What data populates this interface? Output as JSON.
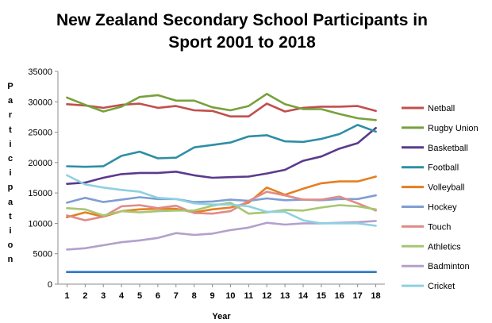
{
  "chart_data": {
    "type": "line",
    "title": "New Zealand Secondary School Participants in Sport 2001 to 2018",
    "title_lines": [
      "New Zealand Secondary School Participants in",
      "Sport 2001 to 2018"
    ],
    "xlabel": "Year",
    "ylabel": "Participation",
    "x": [
      1,
      2,
      3,
      4,
      5,
      6,
      7,
      8,
      9,
      10,
      11,
      12,
      13,
      14,
      15,
      16,
      17,
      18
    ],
    "ylim": [
      0,
      35000
    ],
    "yticks": [
      0,
      5000,
      10000,
      15000,
      20000,
      25000,
      30000,
      35000
    ],
    "legend_position": "right",
    "grid": false,
    "series": [
      {
        "name": "Netball",
        "color": "#c0504d",
        "values": [
          29600,
          29400,
          29000,
          29500,
          29700,
          29000,
          29300,
          28600,
          28500,
          27600,
          27600,
          29700,
          28400,
          29000,
          29200,
          29200,
          29300,
          28500
        ]
      },
      {
        "name": "Rugby Union",
        "color": "#77a13c",
        "values": [
          30700,
          29500,
          28400,
          29200,
          30800,
          31100,
          30200,
          30200,
          29100,
          28600,
          29300,
          31300,
          29600,
          28800,
          28800,
          28000,
          27300,
          27000
        ]
      },
      {
        "name": "Basketball",
        "color": "#5b3a8c",
        "values": [
          16500,
          16700,
          17500,
          18100,
          18300,
          18300,
          18500,
          17900,
          17500,
          17600,
          17700,
          18200,
          18800,
          20300,
          21000,
          22300,
          23200,
          25700
        ]
      },
      {
        "name": "Football",
        "color": "#2e8ea6",
        "values": [
          19400,
          19300,
          19400,
          21100,
          21800,
          20700,
          20800,
          22500,
          22900,
          23300,
          24300,
          24500,
          23500,
          23400,
          23900,
          24700,
          26200,
          25100
        ]
      },
      {
        "name": "Volleyball",
        "color": "#e67e22",
        "values": [
          11000,
          11800,
          11100,
          12000,
          12300,
          12400,
          12400,
          11800,
          12300,
          12600,
          13400,
          15900,
          14700,
          15700,
          16600,
          16900,
          16900,
          17700
        ]
      },
      {
        "name": "Hockey",
        "color": "#7f9fd0",
        "values": [
          13400,
          14200,
          13500,
          13900,
          14300,
          14000,
          14000,
          13500,
          13600,
          13900,
          13700,
          14100,
          13800,
          13900,
          13800,
          14000,
          14000,
          14600
        ]
      },
      {
        "name": "Touch",
        "color": "#e08b88",
        "values": [
          11300,
          10500,
          11100,
          12800,
          13000,
          12500,
          12900,
          11700,
          11600,
          12000,
          13700,
          15200,
          14600,
          13900,
          13900,
          14400,
          13300,
          12100
        ]
      },
      {
        "name": "Athletics",
        "color": "#a5c772",
        "values": [
          12500,
          12300,
          11300,
          12000,
          11800,
          12000,
          12100,
          12100,
          12900,
          13400,
          11600,
          11800,
          12200,
          12100,
          12600,
          13000,
          12800,
          12300
        ]
      },
      {
        "name": "Badminton",
        "color": "#b3a0cc",
        "values": [
          5700,
          5900,
          6400,
          6900,
          7200,
          7600,
          8400,
          8100,
          8300,
          8900,
          9300,
          10100,
          9800,
          10000,
          10000,
          10100,
          10200,
          10400
        ]
      },
      {
        "name": "Cricket",
        "color": "#8fd0e2",
        "values": [
          17900,
          16400,
          15900,
          15500,
          15200,
          14200,
          14000,
          13300,
          13100,
          13100,
          12800,
          11900,
          11900,
          10500,
          10000,
          10000,
          10000,
          9600
        ]
      }
    ],
    "extra_lines": [
      {
        "name": "unlabelled-series",
        "color": "#2f77c8",
        "values": [
          2000,
          2000,
          2000,
          2000,
          2000,
          2000,
          2000,
          2000,
          2000,
          2000,
          2000,
          2000,
          2000,
          2000,
          2000,
          2000,
          2000,
          2000
        ]
      }
    ]
  }
}
